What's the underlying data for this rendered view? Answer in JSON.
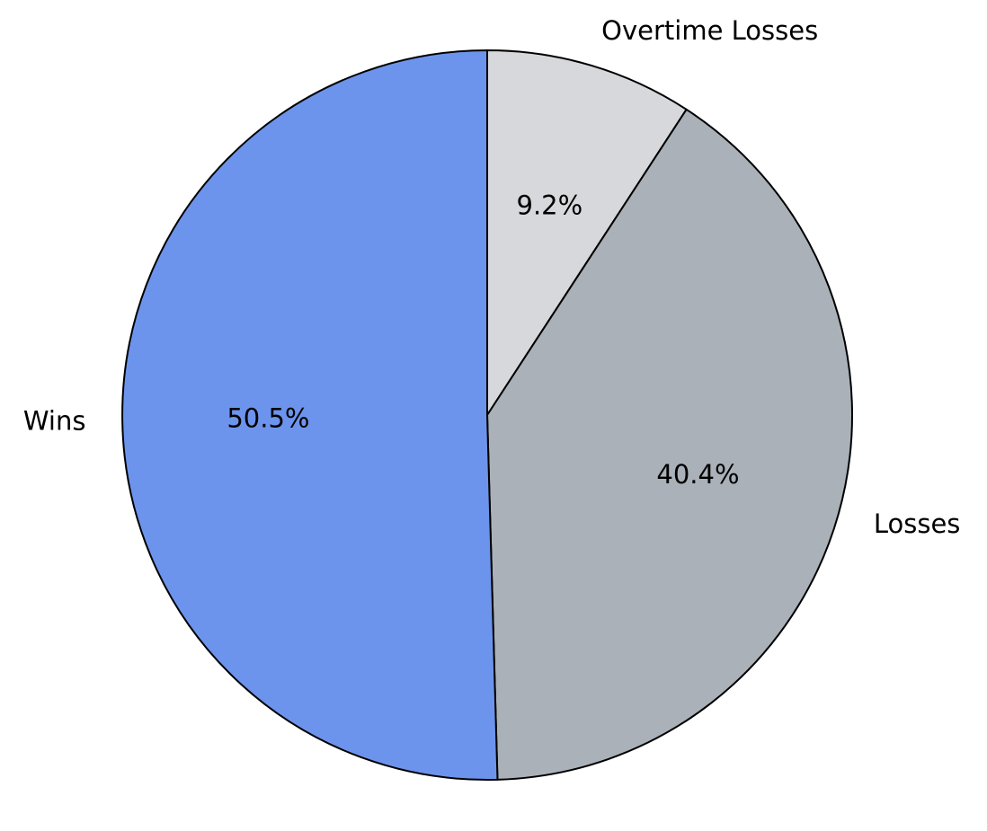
{
  "chart_data": {
    "type": "pie",
    "title": "",
    "slices": [
      {
        "label": "Overtime Losses",
        "value": 9.2,
        "pct_label": "9.2%",
        "color": "#d6d8db"
      },
      {
        "label": "Losses",
        "value": 40.4,
        "pct_label": "40.4%",
        "color": "#aab1b8"
      },
      {
        "label": "Wins",
        "value": 50.5,
        "pct_label": "50.5%",
        "color": "#6d94ec"
      }
    ],
    "start_angle": "top",
    "direction": "clockwise",
    "legend": "none"
  }
}
